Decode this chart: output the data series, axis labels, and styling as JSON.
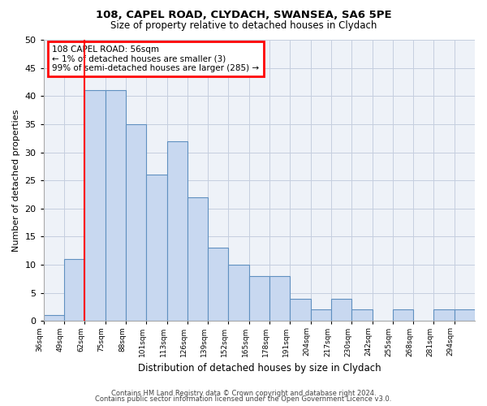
{
  "title1": "108, CAPEL ROAD, CLYDACH, SWANSEA, SA6 5PE",
  "title2": "Size of property relative to detached houses in Clydach",
  "xlabel": "Distribution of detached houses by size in Clydach",
  "ylabel": "Number of detached properties",
  "categories": [
    "36sqm",
    "49sqm",
    "62sqm",
    "75sqm",
    "88sqm",
    "101sqm",
    "113sqm",
    "126sqm",
    "139sqm",
    "152sqm",
    "165sqm",
    "178sqm",
    "191sqm",
    "204sqm",
    "217sqm",
    "230sqm",
    "242sqm",
    "255sqm",
    "268sqm",
    "281sqm",
    "294sqm"
  ],
  "values": [
    1,
    11,
    41,
    41,
    35,
    26,
    32,
    22,
    13,
    10,
    8,
    8,
    4,
    2,
    4,
    2,
    0,
    2,
    0,
    2,
    2
  ],
  "bar_color": "#c8d8f0",
  "bar_edge_color": "#6090c0",
  "highlight_bar_index": 1,
  "red_line_after_index": 1,
  "ylim": [
    0,
    50
  ],
  "yticks": [
    0,
    5,
    10,
    15,
    20,
    25,
    30,
    35,
    40,
    45,
    50
  ],
  "annotation_title": "108 CAPEL ROAD: 56sqm",
  "annotation_line1": "← 1% of detached houses are smaller (3)",
  "annotation_line2": "99% of semi-detached houses are larger (285) →",
  "footer1": "Contains HM Land Registry data © Crown copyright and database right 2024.",
  "footer2": "Contains public sector information licensed under the Open Government Licence v3.0.",
  "bg_color": "#eef2f8",
  "plot_bg_color": "#eef2f8"
}
